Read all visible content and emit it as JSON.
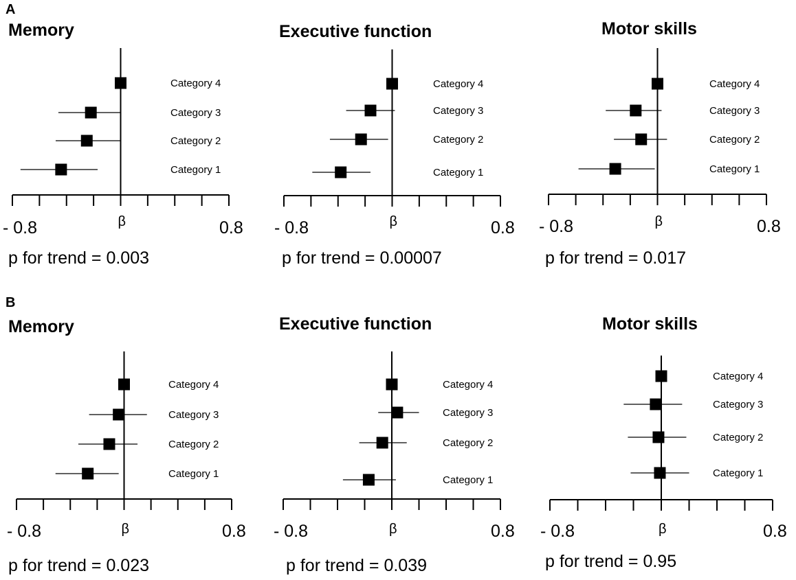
{
  "panels": [
    {
      "letter": "A"
    },
    {
      "letter": "B"
    }
  ],
  "chart_data": [
    {
      "type": "forest",
      "panel": "A",
      "title": "Memory",
      "xlabel": "β",
      "xlim": [
        -0.8,
        0.8
      ],
      "xticks": [
        "- 0.8",
        "0.8"
      ],
      "p_for_trend": "p for trend = 0.003",
      "categories": [
        "Category 4",
        "Category 3",
        "Category 2",
        "Category 1"
      ],
      "estimates": [
        0.0,
        -0.22,
        -0.25,
        -0.44
      ],
      "ci_low": [
        0.0,
        -0.46,
        -0.48,
        -0.74
      ],
      "ci_high": [
        0.0,
        0.0,
        0.0,
        -0.17
      ]
    },
    {
      "type": "forest",
      "panel": "A",
      "title": "Executive function",
      "xlabel": "β",
      "xlim": [
        -0.8,
        0.8
      ],
      "xticks": [
        "- 0.8",
        "0.8"
      ],
      "p_for_trend": "p for trend = 0.00007",
      "categories": [
        "Category 4",
        "Category 3",
        "Category 2",
        "Category 1"
      ],
      "estimates": [
        0.0,
        -0.16,
        -0.23,
        -0.38
      ],
      "ci_low": [
        0.0,
        -0.34,
        -0.46,
        -0.59
      ],
      "ci_high": [
        0.0,
        0.02,
        -0.03,
        -0.16
      ]
    },
    {
      "type": "forest",
      "panel": "A",
      "title": "Motor skills",
      "xlabel": "β",
      "xlim": [
        -0.8,
        0.8
      ],
      "xticks": [
        "- 0.8",
        "0.8"
      ],
      "p_for_trend": "p for trend = 0.017",
      "categories": [
        "Category 4",
        "Category 3",
        "Category 2",
        "Category 1"
      ],
      "estimates": [
        0.0,
        -0.16,
        -0.12,
        -0.31
      ],
      "ci_low": [
        0.0,
        -0.38,
        -0.32,
        -0.58
      ],
      "ci_high": [
        0.0,
        0.03,
        0.07,
        -0.02
      ]
    },
    {
      "type": "forest",
      "panel": "B",
      "title": "Memory",
      "xlabel": "β",
      "xlim": [
        -0.8,
        0.8
      ],
      "xticks": [
        "- 0.8",
        "0.8"
      ],
      "p_for_trend": "p for trend = 0.023",
      "categories": [
        "Category 4",
        "Category 3",
        "Category 2",
        "Category 1"
      ],
      "estimates": [
        0.0,
        -0.04,
        -0.11,
        -0.27
      ],
      "ci_low": [
        0.0,
        -0.26,
        -0.34,
        -0.51
      ],
      "ci_high": [
        0.0,
        0.17,
        0.1,
        -0.04
      ]
    },
    {
      "type": "forest",
      "panel": "B",
      "title": "Executive function",
      "xlabel": "β",
      "xlim": [
        -0.8,
        0.8
      ],
      "xticks": [
        "- 0.8",
        "0.8"
      ],
      "p_for_trend": "p for trend = 0.039",
      "categories": [
        "Category 4",
        "Category 3",
        "Category 2",
        "Category 1"
      ],
      "estimates": [
        0.0,
        0.04,
        -0.07,
        -0.17
      ],
      "ci_low": [
        0.0,
        -0.1,
        -0.24,
        -0.36
      ],
      "ci_high": [
        0.0,
        0.2,
        0.11,
        0.03
      ]
    },
    {
      "type": "forest",
      "panel": "B",
      "title": "Motor skills",
      "xlabel": "β",
      "xlim": [
        -0.8,
        0.8
      ],
      "xticks": [
        "- 0.8",
        "0.8"
      ],
      "p_for_trend": "p for trend = 0.95",
      "categories": [
        "Category 4",
        "Category 3",
        "Category 2",
        "Category 1"
      ],
      "estimates": [
        0.0,
        -0.04,
        -0.02,
        -0.01
      ],
      "ci_low": [
        0.0,
        -0.27,
        -0.24,
        -0.22
      ],
      "ci_high": [
        0.0,
        0.15,
        0.18,
        0.2
      ]
    }
  ]
}
